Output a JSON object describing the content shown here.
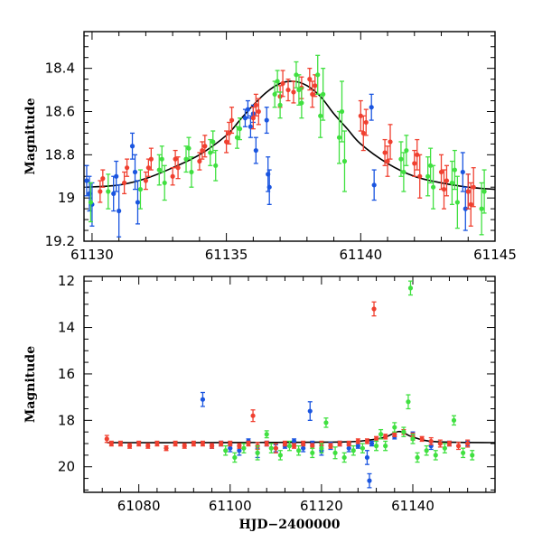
{
  "chart_data": [
    {
      "id": "zoom-panel",
      "type": "scatter",
      "title": "",
      "xlabel": "",
      "ylabel": "Magnitude",
      "xlim": [
        61129.7,
        61145
      ],
      "ylim": [
        19.2,
        18.23
      ],
      "y_inverted": true,
      "grid": false,
      "xticks": [
        61130,
        61135,
        61140,
        61145
      ],
      "xtick_labels": [
        "61130",
        "61135",
        "61140",
        "61145"
      ],
      "yticks": [
        18.4,
        18.6,
        18.8,
        19,
        19.2
      ],
      "ytick_labels": [
        "18.4",
        "18.6",
        "18.8",
        "19",
        "19.2"
      ],
      "model_curve": {
        "name": "model",
        "color": "#000000",
        "x": [
          61129.8,
          61131,
          61132,
          61133,
          61134,
          61135,
          61135.5,
          61136,
          61136.5,
          61137,
          61137.5,
          61138,
          61138.5,
          61139,
          61139.5,
          61140,
          61141,
          61142,
          61143,
          61144,
          61145
        ],
        "y": [
          18.95,
          18.94,
          18.91,
          18.86,
          18.8,
          18.71,
          18.64,
          18.57,
          18.51,
          18.47,
          18.46,
          18.48,
          18.53,
          18.61,
          18.68,
          18.75,
          18.84,
          18.9,
          18.93,
          18.95,
          18.96
        ]
      },
      "series": [
        {
          "name": "blue",
          "color": "#1a55e0",
          "x": [
            61129.8,
            61129.9,
            61130.0,
            61130.8,
            61130.9,
            61131.0,
            61131.5,
            61131.6,
            61131.7,
            61135.7,
            61135.8,
            61135.9,
            61136.0,
            61136.1,
            61136.5,
            61136.55,
            61136.6,
            61140.4,
            61140.5,
            61143.8,
            61143.9,
            61144.0
          ],
          "y": [
            18.92,
            18.98,
            19.03,
            18.98,
            18.9,
            19.06,
            18.76,
            18.88,
            19.02,
            18.63,
            18.59,
            18.67,
            18.61,
            18.78,
            18.64,
            18.89,
            18.95,
            18.58,
            18.94,
            18.88,
            19.05,
            18.97
          ],
          "err": [
            0.07,
            0.08,
            0.1,
            0.08,
            0.07,
            0.12,
            0.06,
            0.08,
            0.1,
            0.04,
            0.04,
            0.05,
            0.04,
            0.06,
            0.06,
            0.08,
            0.08,
            0.06,
            0.07,
            0.09,
            0.1,
            0.08
          ]
        },
        {
          "name": "red",
          "color": "#f04030",
          "x": [
            61130.3,
            61130.4,
            61131.2,
            61131.3,
            61132.0,
            61132.1,
            61132.2,
            61133.0,
            61133.1,
            61133.2,
            61134.0,
            61134.1,
            61134.2,
            61135.0,
            61135.1,
            61135.2,
            61136.0,
            61136.1,
            61136.2,
            61137.0,
            61137.1,
            61137.3,
            61137.5,
            61137.8,
            61138.1,
            61138.2,
            61138.3,
            61140.0,
            61140.1,
            61140.2,
            61140.9,
            61141.0,
            61141.1,
            61142.0,
            61142.1,
            61142.2,
            61143.0,
            61143.1,
            61143.2,
            61144.0,
            61144.1,
            61144.2
          ],
          "y": [
            18.97,
            18.91,
            18.93,
            18.86,
            18.92,
            18.86,
            18.82,
            18.9,
            18.82,
            18.86,
            18.83,
            18.78,
            18.76,
            18.74,
            18.7,
            18.64,
            18.63,
            18.57,
            18.6,
            18.53,
            18.47,
            18.5,
            18.51,
            18.49,
            18.45,
            18.52,
            18.48,
            18.62,
            18.7,
            18.65,
            18.79,
            18.83,
            18.74,
            18.84,
            18.8,
            18.9,
            18.88,
            18.96,
            18.92,
            18.97,
            19.03,
            18.95
          ],
          "err": [
            0.05,
            0.04,
            0.05,
            0.04,
            0.04,
            0.04,
            0.05,
            0.04,
            0.04,
            0.05,
            0.04,
            0.04,
            0.05,
            0.05,
            0.05,
            0.06,
            0.05,
            0.05,
            0.06,
            0.05,
            0.06,
            0.05,
            0.05,
            0.05,
            0.05,
            0.06,
            0.05,
            0.07,
            0.08,
            0.06,
            0.06,
            0.07,
            0.08,
            0.06,
            0.07,
            0.1,
            0.08,
            0.09,
            0.07,
            0.08,
            0.1,
            0.09
          ]
        },
        {
          "name": "green",
          "color": "#40e040",
          "x": [
            61129.95,
            61130.6,
            61131.8,
            61132.5,
            61132.6,
            61132.7,
            61133.5,
            61133.6,
            61133.7,
            61134.4,
            61134.5,
            61134.6,
            61135.4,
            61135.5,
            61136.8,
            61136.9,
            61137.0,
            61137.6,
            61137.7,
            61137.8,
            61138.4,
            61138.5,
            61138.6,
            61139.2,
            61139.3,
            61139.4,
            61141.5,
            61141.6,
            61141.7,
            61142.5,
            61142.6,
            61142.7,
            61143.4,
            61143.5,
            61143.6,
            61144.5,
            61144.6
          ],
          "y": [
            19.02,
            18.97,
            18.96,
            18.87,
            18.82,
            18.93,
            18.82,
            18.77,
            18.88,
            18.79,
            18.74,
            18.85,
            18.72,
            18.68,
            18.52,
            18.46,
            18.57,
            18.43,
            18.5,
            18.56,
            18.43,
            18.62,
            18.52,
            18.72,
            18.6,
            18.83,
            18.82,
            18.88,
            18.78,
            18.9,
            18.85,
            18.95,
            18.93,
            18.87,
            19.02,
            19.05,
            18.97
          ],
          "err": [
            0.09,
            0.08,
            0.09,
            0.07,
            0.06,
            0.08,
            0.06,
            0.05,
            0.07,
            0.06,
            0.05,
            0.07,
            0.05,
            0.05,
            0.06,
            0.05,
            0.06,
            0.06,
            0.07,
            0.07,
            0.09,
            0.1,
            0.12,
            0.12,
            0.14,
            0.14,
            0.08,
            0.09,
            0.07,
            0.09,
            0.08,
            0.1,
            0.1,
            0.09,
            0.12,
            0.12,
            0.1
          ]
        }
      ]
    },
    {
      "id": "full-panel",
      "type": "scatter",
      "title": "",
      "xlabel": "HJD−2400000",
      "ylabel": "Magnitude",
      "xlim": [
        61068,
        61158
      ],
      "ylim": [
        21.1,
        11.8
      ],
      "y_inverted": true,
      "grid": false,
      "xticks": [
        61080,
        61100,
        61120,
        61140
      ],
      "xtick_labels": [
        "61080",
        "61100",
        "61120",
        "61140"
      ],
      "yticks": [
        12,
        14,
        16,
        18,
        20
      ],
      "ytick_labels": [
        "12",
        "14",
        "16",
        "18",
        "20"
      ],
      "model_curve": {
        "name": "model",
        "color": "#000000",
        "x": [
          61073,
          61090,
          61110,
          61125,
          61130,
          61134,
          61137,
          61140,
          61145,
          61158
        ],
        "y": [
          18.96,
          18.96,
          18.95,
          18.93,
          18.86,
          18.72,
          18.48,
          18.72,
          18.92,
          18.96
        ]
      },
      "series": [
        {
          "name": "blue",
          "color": "#1a55e0",
          "x": [
            61094,
            61096,
            61098,
            61100,
            61102,
            61104,
            61106,
            61108,
            61110,
            61112,
            61114,
            61116,
            61117.5,
            61118,
            61120,
            61122,
            61124,
            61126,
            61128,
            61130,
            61130.5,
            61131,
            61136,
            61140,
            61144,
            61148,
            61152
          ],
          "y": [
            17.1,
            19.1,
            19.0,
            19.2,
            19.3,
            18.9,
            19.4,
            19.0,
            19.2,
            19.1,
            18.9,
            19.2,
            17.6,
            19.0,
            19.3,
            19.1,
            19.0,
            19.2,
            19.1,
            19.6,
            20.6,
            19.0,
            18.7,
            18.6,
            19.1,
            19.0,
            19.0
          ],
          "err": [
            0.3,
            0.1,
            0.1,
            0.15,
            0.2,
            0.1,
            0.2,
            0.1,
            0.15,
            0.1,
            0.1,
            0.15,
            0.4,
            0.1,
            0.2,
            0.15,
            0.1,
            0.15,
            0.1,
            0.3,
            0.3,
            0.1,
            0.1,
            0.1,
            0.15,
            0.1,
            0.1
          ]
        },
        {
          "name": "red",
          "color": "#f04030",
          "x": [
            61073,
            61074,
            61076,
            61078,
            61080,
            61082,
            61084,
            61086,
            61088,
            61090,
            61092,
            61094,
            61096,
            61098,
            61100,
            61102,
            61104,
            61105,
            61106,
            61108,
            61110,
            61112,
            61114,
            61116,
            61118,
            61120,
            61122,
            61124,
            61126,
            61128,
            61130,
            61131.5,
            61132,
            61134,
            61136,
            61138,
            61140,
            61142,
            61144,
            61146,
            61148,
            61150,
            61152
          ],
          "y": [
            18.8,
            19.0,
            19.0,
            19.1,
            19.0,
            19.1,
            19.0,
            19.2,
            19.0,
            19.1,
            19.0,
            19.0,
            19.1,
            19.0,
            19.0,
            19.1,
            19.0,
            17.8,
            19.1,
            19.0,
            19.2,
            19.0,
            19.1,
            19.0,
            19.1,
            19.0,
            19.1,
            19.0,
            19.0,
            18.9,
            18.9,
            13.2,
            18.8,
            18.7,
            18.6,
            18.5,
            18.7,
            18.8,
            18.9,
            19.0,
            19.0,
            19.1,
            19.0
          ],
          "err": [
            0.15,
            0.1,
            0.1,
            0.1,
            0.1,
            0.1,
            0.1,
            0.1,
            0.1,
            0.1,
            0.1,
            0.1,
            0.1,
            0.1,
            0.1,
            0.1,
            0.1,
            0.25,
            0.15,
            0.1,
            0.2,
            0.1,
            0.1,
            0.1,
            0.1,
            0.1,
            0.1,
            0.1,
            0.1,
            0.1,
            0.1,
            0.3,
            0.1,
            0.1,
            0.1,
            0.1,
            0.15,
            0.1,
            0.15,
            0.15,
            0.1,
            0.15,
            0.15
          ]
        },
        {
          "name": "green",
          "color": "#40e040",
          "x": [
            61099,
            61101,
            61103,
            61106,
            61108,
            61109,
            61111,
            61113,
            61115,
            61118,
            61120,
            61121,
            61123,
            61125,
            61127,
            61129,
            61132,
            61133,
            61134,
            61136,
            61138,
            61139,
            61139.5,
            61140,
            61141,
            61143,
            61145,
            61147,
            61149,
            61151,
            61153
          ],
          "y": [
            19.3,
            19.6,
            19.2,
            19.4,
            18.6,
            19.2,
            19.5,
            19.1,
            19.3,
            19.4,
            19.2,
            18.1,
            19.4,
            19.6,
            19.3,
            19.2,
            19.1,
            18.6,
            19.1,
            18.3,
            18.5,
            17.2,
            12.3,
            18.8,
            19.6,
            19.3,
            19.5,
            19.2,
            18.0,
            19.4,
            19.5
          ],
          "err": [
            0.2,
            0.2,
            0.2,
            0.3,
            0.15,
            0.2,
            0.2,
            0.2,
            0.2,
            0.2,
            0.2,
            0.2,
            0.25,
            0.2,
            0.2,
            0.2,
            0.2,
            0.2,
            0.2,
            0.2,
            0.2,
            0.3,
            0.3,
            0.2,
            0.2,
            0.2,
            0.2,
            0.2,
            0.2,
            0.2,
            0.2
          ]
        }
      ]
    }
  ]
}
